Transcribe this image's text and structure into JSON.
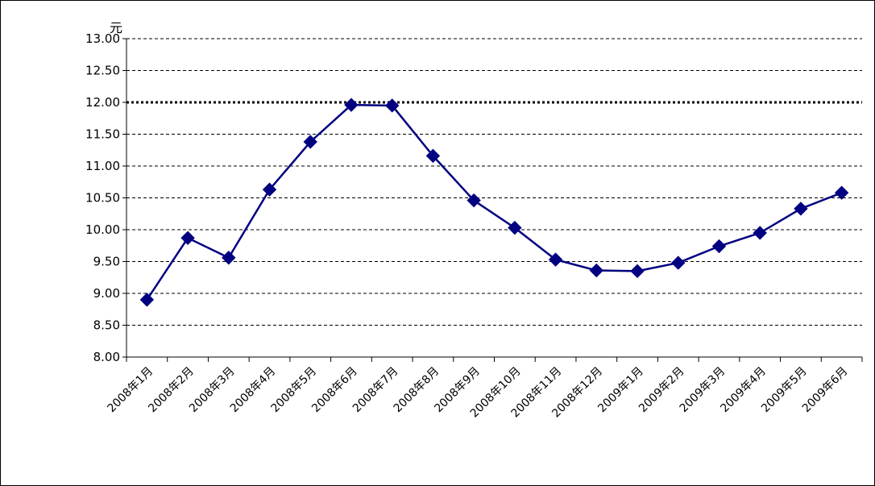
{
  "chart_data": {
    "type": "line",
    "title": "",
    "xlabel": "",
    "ylabel": "元",
    "ylim": [
      8.0,
      13.0
    ],
    "yticks": [
      "13.00",
      "12.50",
      "12.00",
      "11.50",
      "11.00",
      "10.50",
      "10.00",
      "9.50",
      "9.00",
      "8.50",
      "8.00"
    ],
    "grid": true,
    "categories": [
      "2008年1月",
      "2008年2月",
      "2008年3月",
      "2008年4月",
      "2008年5月",
      "2008年6月",
      "2008年7月",
      "2008年8月",
      "2008年9月",
      "2008年10月",
      "2008年11月",
      "2008年12月",
      "2009年1月",
      "2009年2月",
      "2009年3月",
      "2009年4月",
      "2009年5月",
      "2009年6月"
    ],
    "series": [
      {
        "values": [
          8.9,
          9.87,
          9.56,
          10.63,
          11.38,
          11.96,
          11.95,
          11.16,
          10.46,
          10.03,
          9.53,
          9.36,
          9.35,
          9.48,
          9.74,
          9.95,
          10.33,
          10.58
        ],
        "color": "#000080"
      }
    ],
    "reference_line": {
      "value": 12.0,
      "style": "bold-dotted"
    }
  }
}
